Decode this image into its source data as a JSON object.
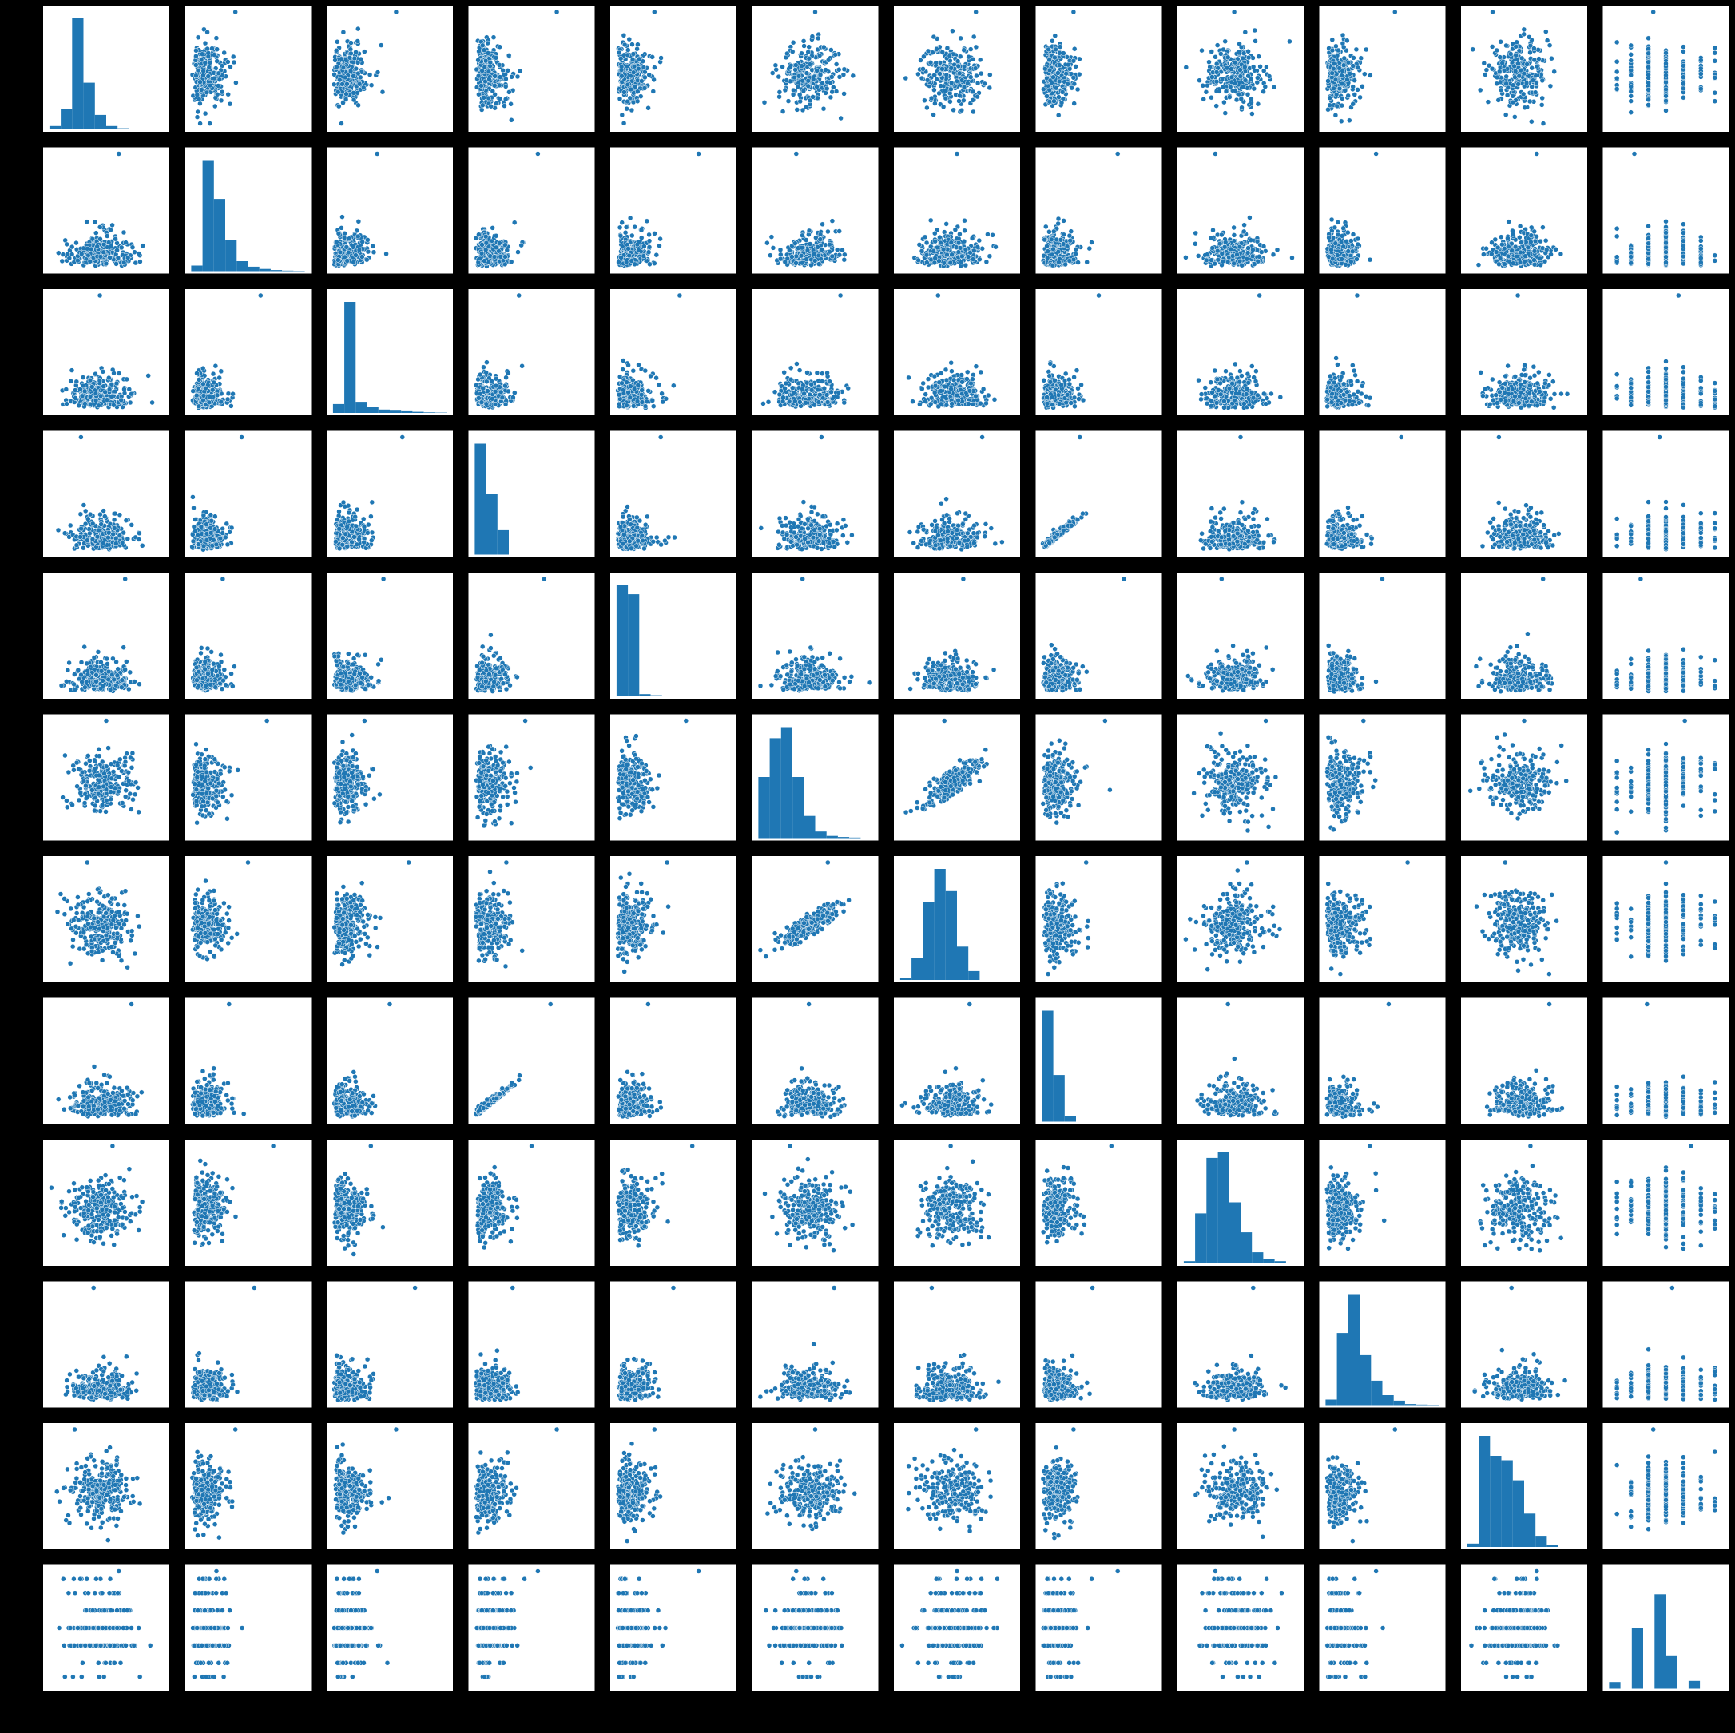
{
  "figure": {
    "background": "#000000",
    "panel_background": "#ffffff",
    "marker_color": "#1f77b4",
    "marker_edge": "#ffffff"
  },
  "chart_data": {
    "type": "pairplot",
    "n_vars": 12,
    "title": "",
    "axis_labels_visible": false,
    "tick_labels_visible": false,
    "legend": "none",
    "grid": false,
    "diagonal": "histogram",
    "off_diagonal": "scatter",
    "variables": [
      {
        "dist": "normal",
        "ratios": [
          0.03,
          0.18,
          1.0,
          0.42,
          0.13,
          0.03,
          0.01,
          0.005,
          0.0,
          0.0
        ]
      },
      {
        "dist": "skew",
        "ratios": [
          0.05,
          1.0,
          0.65,
          0.28,
          0.09,
          0.04,
          0.02,
          0.01,
          0.005,
          0.003
        ]
      },
      {
        "dist": "skew",
        "ratios": [
          0.08,
          1.0,
          0.1,
          0.05,
          0.03,
          0.02,
          0.015,
          0.01,
          0.005,
          0.003
        ]
      },
      {
        "dist": "skew",
        "ratios": [
          1.0,
          0.55,
          0.22,
          0.0,
          0.0,
          0.0,
          0.0,
          0.0,
          0.0,
          0.0
        ]
      },
      {
        "dist": "skew",
        "ratios": [
          1.0,
          0.92,
          0.02,
          0.01,
          0.005,
          0.003,
          0.002,
          0.001,
          0.0,
          0.0
        ]
      },
      {
        "dist": "normal",
        "ratios": [
          0.55,
          0.9,
          1.0,
          0.55,
          0.2,
          0.06,
          0.02,
          0.01,
          0.005,
          0.0
        ]
      },
      {
        "dist": "normal",
        "ratios": [
          0.02,
          0.2,
          0.7,
          1.0,
          0.8,
          0.3,
          0.08,
          0.0,
          0.0,
          0.0
        ]
      },
      {
        "dist": "skew",
        "ratios": [
          1.0,
          0.42,
          0.05,
          0.0,
          0.0,
          0.0,
          0.0,
          0.0,
          0.0,
          0.0
        ]
      },
      {
        "dist": "normal",
        "ratios": [
          0.02,
          0.45,
          0.95,
          1.0,
          0.55,
          0.28,
          0.1,
          0.04,
          0.02,
          0.005
        ]
      },
      {
        "dist": "skew",
        "ratios": [
          0.05,
          0.65,
          1.0,
          0.45,
          0.22,
          0.09,
          0.04,
          0.01,
          0.005,
          0.003
        ]
      },
      {
        "dist": "normal",
        "ratios": [
          0.03,
          1.0,
          0.82,
          0.78,
          0.6,
          0.3,
          0.1,
          0.02,
          0.0,
          0.0
        ]
      },
      {
        "dist": "discrete",
        "ratios": [
          0.06,
          0.0,
          0.55,
          0.0,
          0.85,
          0.3,
          0.0,
          0.07,
          0.0,
          0.0
        ]
      }
    ]
  }
}
